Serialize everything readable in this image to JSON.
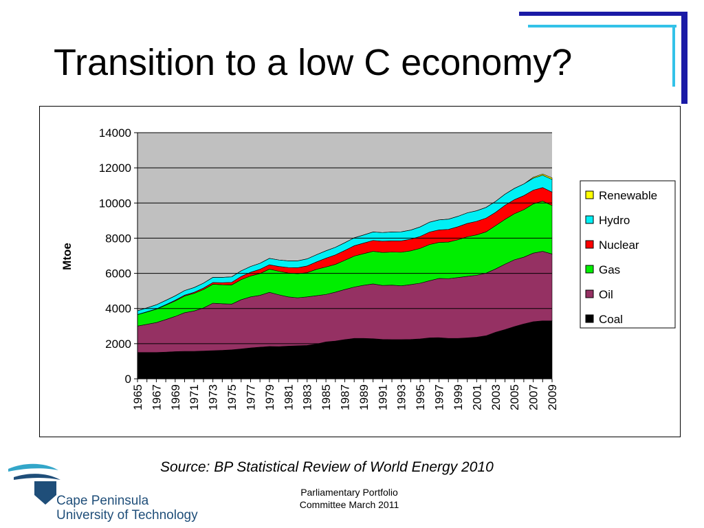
{
  "slide": {
    "title": "Transition to a low C economy?",
    "source": "Source: BP Statistical Review of World Energy 2010",
    "footer_line1": "Parliamentary Portfolio",
    "footer_line2": "Committee March 2011",
    "logo_line1": "Cape Peninsula",
    "logo_line2": "University of Technology"
  },
  "colors": {
    "plot_background": "#c0c0c0",
    "deco_dark_blue": "#1a1aa6",
    "deco_light_blue": "#33c2e8",
    "logo_blue": "#1f4e79"
  },
  "chart_data": {
    "type": "area",
    "stacked": true,
    "ylabel": "Mtoe",
    "xlabel": "",
    "ylim": [
      0,
      14000
    ],
    "yticks": [
      0,
      2000,
      4000,
      6000,
      8000,
      10000,
      12000,
      14000
    ],
    "grid": true,
    "legend_position": "right",
    "x": [
      1965,
      1966,
      1967,
      1968,
      1969,
      1970,
      1971,
      1972,
      1973,
      1974,
      1975,
      1976,
      1977,
      1978,
      1979,
      1980,
      1981,
      1982,
      1983,
      1984,
      1985,
      1986,
      1987,
      1988,
      1989,
      1990,
      1991,
      1992,
      1993,
      1994,
      1995,
      1996,
      1997,
      1998,
      1999,
      2000,
      2001,
      2002,
      2003,
      2004,
      2005,
      2006,
      2007,
      2008,
      2009
    ],
    "xtick_labels": [
      "1965",
      "1967",
      "1969",
      "1971",
      "1973",
      "1975",
      "1977",
      "1979",
      "1981",
      "1983",
      "1985",
      "1987",
      "1989",
      "1991",
      "1993",
      "1995",
      "1997",
      "1999",
      "2001",
      "2003",
      "2005",
      "2007",
      "2009"
    ],
    "series": [
      {
        "name": "Coal",
        "color": "#000000",
        "values": [
          1500,
          1500,
          1500,
          1520,
          1550,
          1560,
          1560,
          1580,
          1600,
          1620,
          1650,
          1700,
          1760,
          1800,
          1840,
          1830,
          1860,
          1880,
          1900,
          1980,
          2100,
          2150,
          2230,
          2300,
          2300,
          2280,
          2240,
          2230,
          2230,
          2240,
          2270,
          2330,
          2340,
          2300,
          2300,
          2330,
          2370,
          2450,
          2650,
          2800,
          2970,
          3120,
          3250,
          3300,
          3300
        ]
      },
      {
        "name": "Oil",
        "color": "#953163",
        "values": [
          1500,
          1600,
          1700,
          1850,
          2000,
          2200,
          2300,
          2450,
          2700,
          2650,
          2600,
          2800,
          2900,
          2950,
          3080,
          2950,
          2800,
          2730,
          2760,
          2750,
          2700,
          2780,
          2850,
          2920,
          3020,
          3120,
          3070,
          3100,
          3060,
          3120,
          3170,
          3250,
          3370,
          3400,
          3460,
          3500,
          3520,
          3560,
          3600,
          3720,
          3800,
          3800,
          3900,
          3950,
          3800
        ]
      },
      {
        "name": "Gas",
        "color": "#00ee00",
        "values": [
          650,
          700,
          760,
          820,
          880,
          950,
          1000,
          1050,
          1080,
          1080,
          1090,
          1140,
          1190,
          1240,
          1320,
          1340,
          1360,
          1370,
          1380,
          1500,
          1560,
          1580,
          1660,
          1760,
          1800,
          1850,
          1880,
          1880,
          1910,
          1920,
          1980,
          2060,
          2050,
          2080,
          2150,
          2250,
          2300,
          2350,
          2460,
          2550,
          2620,
          2700,
          2800,
          2860,
          2760
        ]
      },
      {
        "name": "Nuclear",
        "color": "#ff0000",
        "values": [
          10,
          15,
          20,
          30,
          40,
          50,
          60,
          80,
          100,
          120,
          150,
          180,
          210,
          240,
          250,
          270,
          310,
          340,
          380,
          420,
          500,
          540,
          560,
          590,
          600,
          620,
          640,
          640,
          650,
          660,
          680,
          710,
          710,
          720,
          740,
          760,
          770,
          780,
          760,
          800,
          800,
          800,
          780,
          770,
          760
        ]
      },
      {
        "name": "Hydro",
        "color": "#00f0f5",
        "values": [
          210,
          220,
          230,
          240,
          250,
          260,
          270,
          280,
          290,
          300,
          310,
          320,
          330,
          340,
          360,
          370,
          380,
          390,
          400,
          410,
          420,
          430,
          440,
          450,
          460,
          480,
          490,
          500,
          510,
          520,
          540,
          560,
          570,
          580,
          590,
          600,
          600,
          610,
          620,
          630,
          640,
          660,
          680,
          700,
          720
        ]
      },
      {
        "name": "Renewable",
        "color": "#ffff00",
        "values": [
          0,
          0,
          0,
          0,
          0,
          0,
          0,
          0,
          0,
          0,
          0,
          0,
          0,
          0,
          0,
          0,
          0,
          0,
          0,
          0,
          0,
          0,
          0,
          0,
          0,
          0,
          0,
          0,
          0,
          0,
          0,
          0,
          0,
          0,
          0,
          0,
          0,
          0,
          0,
          0,
          0,
          0,
          50,
          70,
          90
        ]
      }
    ]
  }
}
